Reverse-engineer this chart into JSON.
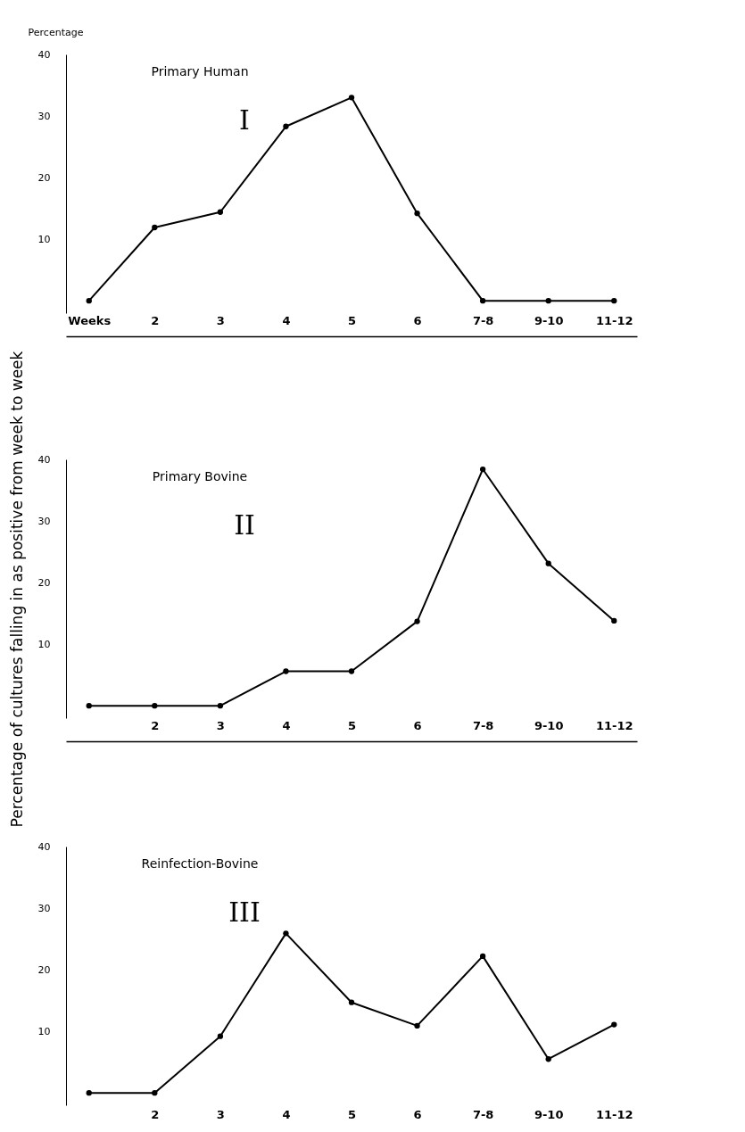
{
  "chart_data": [
    {
      "type": "line",
      "ylabel": "Percentage",
      "annotations": [
        "Primary Human",
        "I"
      ],
      "categories": [
        "Weeks",
        "2",
        "3",
        "4",
        "5",
        "6",
        "7-8",
        "9-10",
        "11-12"
      ],
      "series": [
        {
          "color": "#000000",
          "values": [
            0,
            11.9,
            14.4,
            28.3,
            33,
            14.2,
            0,
            0,
            0
          ]
        }
      ],
      "ylim": [
        -2,
        40
      ],
      "yticks": [
        10,
        20,
        30,
        40
      ],
      "grid": false,
      "legend": false,
      "marker": "circle",
      "line_style": "solid"
    },
    {
      "type": "line",
      "ylabel": "Percentage of cultures falling in as positive from week to week",
      "annotations": [
        "Primary Bovine",
        "II"
      ],
      "categories": [
        null,
        "2",
        "3",
        "4",
        "5",
        "6",
        "7-8",
        "9-10",
        "11-12"
      ],
      "series": [
        {
          "color": "#000000",
          "values": [
            0,
            0,
            0,
            5.6,
            5.6,
            13.7,
            38.4,
            23.1,
            13.8
          ]
        }
      ],
      "ylim": [
        -2,
        40
      ],
      "yticks": [
        10,
        20,
        30,
        40
      ],
      "grid": false,
      "legend": false,
      "marker": "circle",
      "line_style": "solid"
    },
    {
      "type": "line",
      "annotations": [
        "Reinfection-Bovine",
        "III"
      ],
      "categories": [
        null,
        "2",
        "3",
        "4",
        "5",
        "6",
        "7-8",
        "9-10",
        "11-12"
      ],
      "series": [
        {
          "color": "#000000",
          "values": [
            0,
            0,
            9.2,
            25.9,
            14.7,
            10.9,
            22.2,
            5.5,
            11.1
          ]
        }
      ],
      "ylim": [
        -2,
        40
      ],
      "yticks": [
        10,
        20,
        30,
        40
      ],
      "grid": false,
      "legend": false,
      "marker": "circle",
      "line_style": "solid"
    }
  ]
}
